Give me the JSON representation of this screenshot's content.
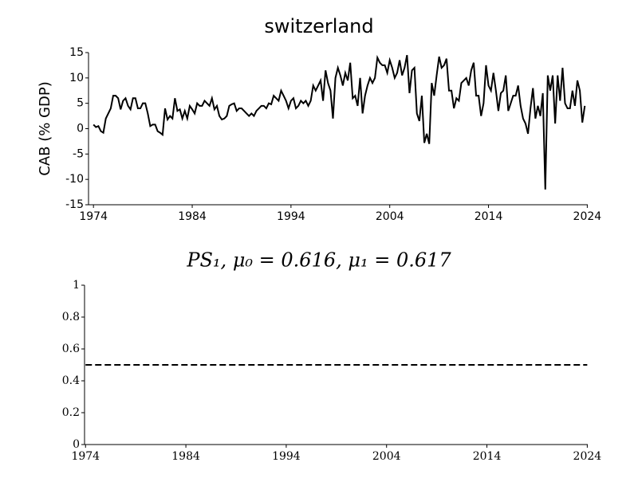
{
  "chart_data": [
    {
      "type": "line",
      "title": "switzerland",
      "y_label": "CAB (% GDP)",
      "color": "#000000",
      "line_style": "solid",
      "x": [
        1974,
        1974.25,
        1974.5,
        1974.75,
        1975,
        1975.25,
        1975.5,
        1975.75,
        1976,
        1976.25,
        1976.5,
        1976.75,
        1977,
        1977.25,
        1977.5,
        1977.75,
        1978,
        1978.25,
        1978.5,
        1978.75,
        1979,
        1979.25,
        1979.5,
        1979.75,
        1980,
        1980.25,
        1980.5,
        1980.75,
        1981,
        1981.25,
        1981.5,
        1981.75,
        1982,
        1982.25,
        1982.5,
        1982.75,
        1983,
        1983.25,
        1983.5,
        1983.75,
        1984,
        1984.25,
        1984.5,
        1984.75,
        1985,
        1985.25,
        1985.5,
        1985.75,
        1986,
        1986.25,
        1986.5,
        1986.75,
        1987,
        1987.25,
        1987.5,
        1987.75,
        1988,
        1988.25,
        1988.5,
        1988.75,
        1989,
        1989.25,
        1989.5,
        1989.75,
        1990,
        1990.25,
        1990.5,
        1990.75,
        1991,
        1991.25,
        1991.5,
        1991.75,
        1992,
        1992.25,
        1992.5,
        1992.75,
        1993,
        1993.25,
        1993.5,
        1993.75,
        1994,
        1994.25,
        1994.5,
        1994.75,
        1995,
        1995.25,
        1995.5,
        1995.75,
        1996,
        1996.25,
        1996.5,
        1996.75,
        1997,
        1997.25,
        1997.5,
        1997.75,
        1998,
        1998.25,
        1998.5,
        1998.75,
        1999,
        1999.25,
        1999.5,
        1999.75,
        2000,
        2000.25,
        2000.5,
        2000.75,
        2001,
        2001.25,
        2001.5,
        2001.75,
        2002,
        2002.25,
        2002.5,
        2002.75,
        2003,
        2003.25,
        2003.5,
        2003.75,
        2004,
        2004.25,
        2004.5,
        2004.75,
        2005,
        2005.25,
        2005.5,
        2005.75,
        2006,
        2006.25,
        2006.5,
        2006.75,
        2007,
        2007.25,
        2007.5,
        2007.75,
        2008,
        2008.25,
        2008.5,
        2008.75,
        2009,
        2009.25,
        2009.5,
        2009.75,
        2010,
        2010.25,
        2010.5,
        2010.75,
        2011,
        2011.25,
        2011.5,
        2011.75,
        2012,
        2012.25,
        2012.5,
        2012.75,
        2013,
        2013.25,
        2013.5,
        2013.75,
        2014,
        2014.25,
        2014.5,
        2014.75,
        2015,
        2015.25,
        2015.5,
        2015.75,
        2016,
        2016.25,
        2016.5,
        2016.75,
        2017,
        2017.25,
        2017.5,
        2017.75,
        2018,
        2018.25,
        2018.5,
        2018.75,
        2019,
        2019.25,
        2019.5,
        2019.75,
        2020,
        2020.25,
        2020.5,
        2020.75,
        2021,
        2021.25,
        2021.5,
        2021.75,
        2022,
        2022.25,
        2022.5,
        2022.75,
        2023,
        2023.25,
        2023.5,
        2023.75
      ],
      "values": [
        0.8,
        0.3,
        0.5,
        -0.5,
        -0.8,
        2,
        3,
        4,
        6.5,
        6.5,
        6,
        3.8,
        5.5,
        6,
        4.5,
        3.8,
        6,
        6,
        4,
        4,
        5,
        5,
        3,
        0.5,
        0.8,
        0.8,
        -0.5,
        -0.8,
        -1.2,
        4,
        1.8,
        2.5,
        2,
        6,
        3.5,
        3.8,
        2,
        3.5,
        2,
        4.5,
        3.8,
        3,
        5,
        4.5,
        4.5,
        5.5,
        5,
        4.5,
        6,
        3.8,
        4.5,
        2.5,
        1.8,
        2,
        2.5,
        4.5,
        4.8,
        5,
        3.5,
        4,
        4,
        3.5,
        3,
        2.5,
        3,
        2.5,
        3.5,
        4,
        4.5,
        4.5,
        4,
        5,
        4.8,
        6.5,
        6,
        5.5,
        7.5,
        6.5,
        5.5,
        4,
        5.5,
        6,
        4,
        4.5,
        5.5,
        5,
        5.5,
        4.5,
        5.5,
        8.5,
        7.5,
        8.5,
        9.5,
        5.5,
        11.5,
        9,
        7.5,
        2,
        10,
        12,
        10.5,
        8.5,
        11,
        9.5,
        13,
        6,
        6.5,
        4.5,
        10,
        3,
        6.5,
        8.5,
        10,
        9,
        10,
        14,
        13,
        12.5,
        12.5,
        11,
        13.5,
        12,
        10,
        11,
        13.5,
        10.5,
        12,
        14.5,
        7,
        11.5,
        12,
        3,
        1.5,
        6.5,
        -2.8,
        -1,
        -3,
        9,
        6.5,
        10.5,
        14.2,
        12,
        12.5,
        13.8,
        7.5,
        7.5,
        4,
        6,
        5.5,
        9,
        9.5,
        10,
        8.5,
        11.5,
        13,
        6.5,
        6.5,
        2.5,
        5,
        12.5,
        8.5,
        7.5,
        11,
        7.5,
        3.5,
        7,
        7.5,
        10.5,
        3.5,
        5,
        6.5,
        6.5,
        8.5,
        4.5,
        2,
        1,
        -1,
        4,
        8,
        2,
        4.5,
        2.5,
        7,
        -12,
        10.5,
        7.5,
        10.5,
        1,
        10.5,
        5.5,
        12,
        5,
        4,
        4,
        7.5,
        4.5,
        9.5,
        7.5,
        1.2,
        4.5
      ],
      "xlim": [
        1973.5,
        2024.05
      ],
      "xticks": [
        1974,
        1984,
        1994,
        2004,
        2014,
        2024
      ],
      "ylim": [
        -15,
        15
      ],
      "yticks": [
        -15,
        -10,
        -5,
        0,
        5,
        10,
        15
      ]
    },
    {
      "type": "line",
      "title": "PS₁, μ₀ = 0.616, μ₁ = 0.617",
      "color": "#000000",
      "line_style": "dashed",
      "x": [
        1974,
        2024
      ],
      "values": [
        0.5,
        0.5
      ],
      "xlim": [
        1973.9,
        2024.05
      ],
      "xticks": [
        1974,
        1984,
        1994,
        2004,
        2014,
        2024
      ],
      "ylim": [
        0,
        1
      ],
      "yticks": [
        0,
        0.2,
        0.4,
        0.6,
        0.8,
        1
      ]
    }
  ]
}
